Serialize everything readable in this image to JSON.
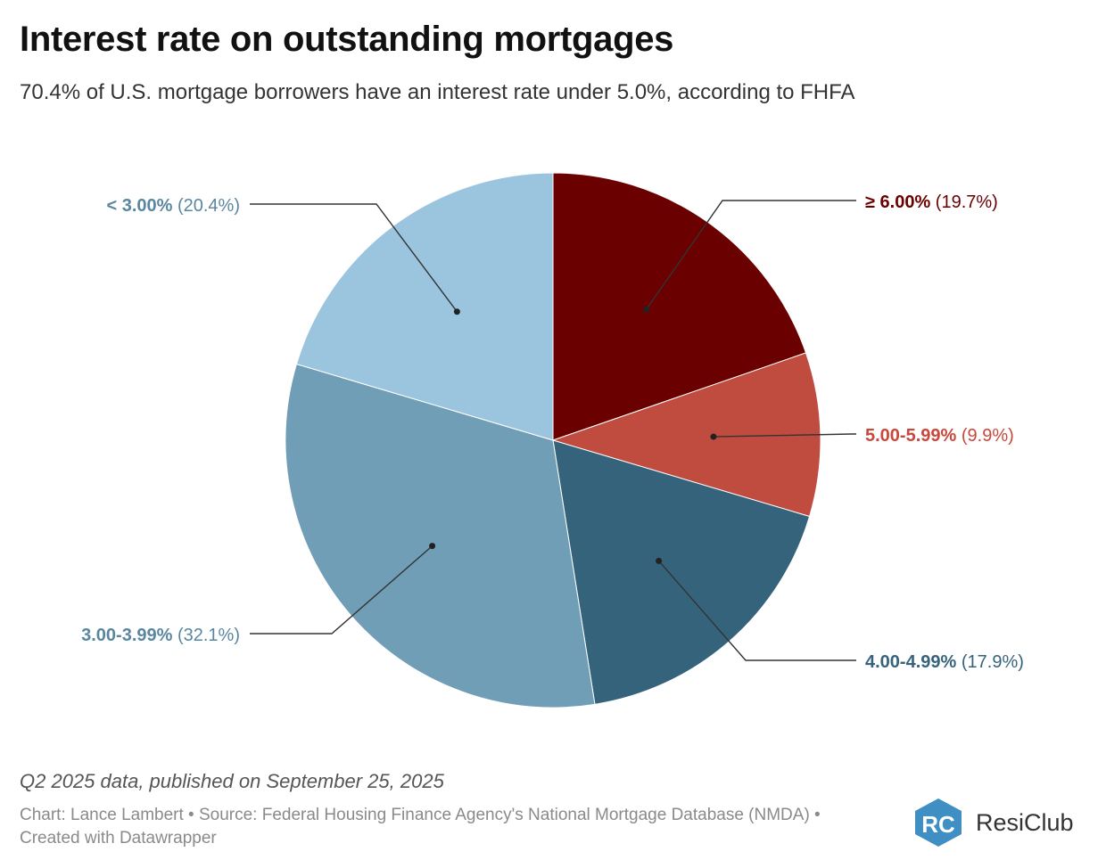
{
  "title": "Interest rate on outstanding mortgages",
  "subtitle": "70.4% of U.S. mortgage borrowers have an interest rate under 5.0%, according to FHFA",
  "note": "Q2 2025 data, published on September 25, 2025",
  "source": "Chart: Lance Lambert • Source: Federal Housing Finance Agency's National Mortgage Database (NMDA) • Created with Datawrapper",
  "logo": {
    "name": "ResiClub",
    "mark": "RC",
    "color": "#3f8fc4"
  },
  "chart_data": {
    "type": "pie",
    "title": "Interest rate on outstanding mortgages",
    "start": "12 o'clock",
    "direction": "clockwise",
    "slices": [
      {
        "label": "≥ 6.00%",
        "value": 19.7,
        "display": "(19.7%)",
        "color": "#6b0000",
        "label_color": "#6b0000"
      },
      {
        "label": "5.00-5.99%",
        "value": 9.9,
        "display": "(9.9%)",
        "color": "#bf4c3f",
        "label_color": "#c9473b"
      },
      {
        "label": "4.00-4.99%",
        "value": 17.9,
        "display": "(17.9%)",
        "color": "#36637c",
        "label_color": "#36637c"
      },
      {
        "label": "3.00-3.99%",
        "value": 32.1,
        "display": "(32.1%)",
        "color": "#719eb7",
        "label_color": "#5a87a0"
      },
      {
        "label": "< 3.00%",
        "value": 20.4,
        "display": "(20.4%)",
        "color": "#9bc5de",
        "label_color": "#5a87a0"
      }
    ]
  }
}
